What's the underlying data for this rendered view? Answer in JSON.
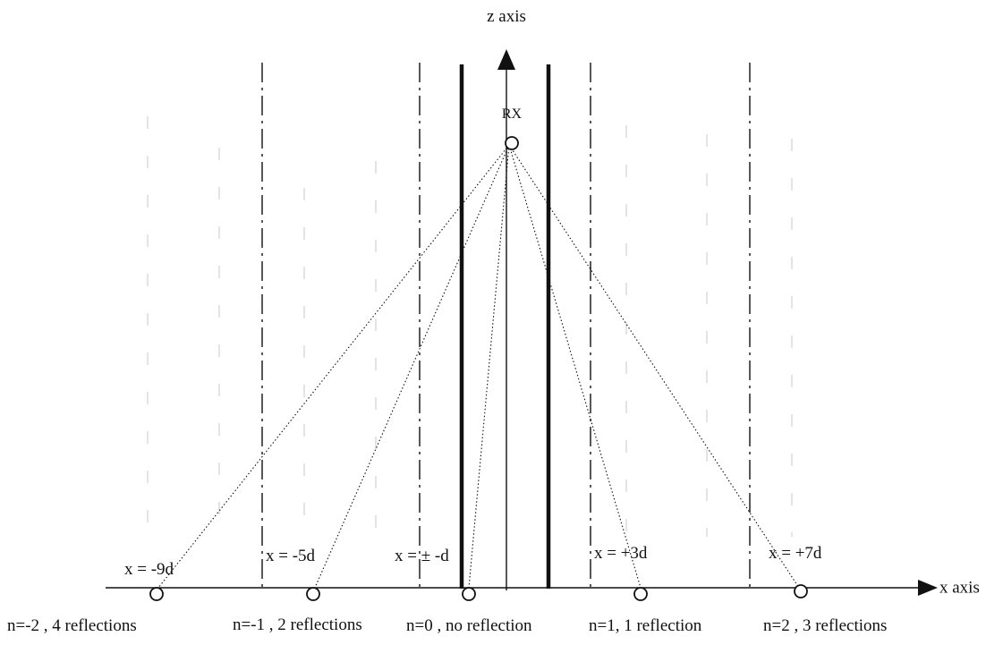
{
  "axes": {
    "z_label": "z axis",
    "x_label": "x axis"
  },
  "receiver": {
    "label": "RX"
  },
  "boundary_positions": [
    {
      "label": "x = -9d"
    },
    {
      "label": "x = -5d"
    },
    {
      "label": "x = ± -d"
    },
    {
      "label": "x = +3d"
    },
    {
      "label": "x = +7d"
    }
  ],
  "images": [
    {
      "label": "n=-2 , 4 reflections"
    },
    {
      "label": "n=-1 , 2 reflections"
    },
    {
      "label": "n=0 , no reflection"
    },
    {
      "label": "n=1, 1 reflection"
    },
    {
      "label": "n=2 , 3 reflections"
    }
  ],
  "colors": {
    "ink": "#111111",
    "faint": "#c9c9c9"
  }
}
